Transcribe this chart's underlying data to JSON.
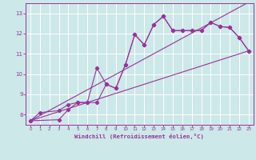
{
  "bg_color": "#cce8e8",
  "grid_color": "#ffffff",
  "line_color": "#993399",
  "xlabel": "Windchill (Refroidissement éolien,°C)",
  "xlim": [
    -0.5,
    23.5
  ],
  "ylim": [
    7.5,
    13.5
  ],
  "yticks": [
    8,
    9,
    10,
    11,
    12,
    13
  ],
  "xticks": [
    0,
    1,
    2,
    3,
    4,
    5,
    6,
    7,
    8,
    9,
    10,
    11,
    12,
    13,
    14,
    15,
    16,
    17,
    18,
    19,
    20,
    21,
    22,
    23
  ],
  "line1_x": [
    0,
    1,
    3,
    4,
    5,
    6,
    7,
    8,
    9,
    10,
    11,
    12,
    13,
    14,
    15,
    16,
    17,
    18,
    19,
    20,
    21,
    22,
    23
  ],
  "line1_y": [
    7.7,
    8.1,
    8.2,
    8.5,
    8.6,
    8.6,
    10.3,
    9.5,
    9.3,
    10.45,
    11.95,
    11.45,
    12.45,
    12.85,
    12.15,
    12.15,
    12.15,
    12.15,
    12.55,
    12.35,
    12.3,
    11.8,
    11.15
  ],
  "line2_x": [
    0,
    3,
    4,
    5,
    6,
    7,
    8,
    9,
    10,
    11,
    12,
    13,
    14,
    15,
    16,
    17,
    18,
    19,
    20,
    21,
    22,
    23
  ],
  "line2_y": [
    7.7,
    7.75,
    8.25,
    8.6,
    8.6,
    8.6,
    9.5,
    9.3,
    10.45,
    11.95,
    11.45,
    12.45,
    12.85,
    12.15,
    12.15,
    12.15,
    12.15,
    12.55,
    12.35,
    12.3,
    11.8,
    11.15
  ],
  "line3_x": [
    0,
    23
  ],
  "line3_y": [
    7.7,
    11.15
  ],
  "line4_x": [
    0,
    23
  ],
  "line4_y": [
    7.7,
    13.55
  ]
}
